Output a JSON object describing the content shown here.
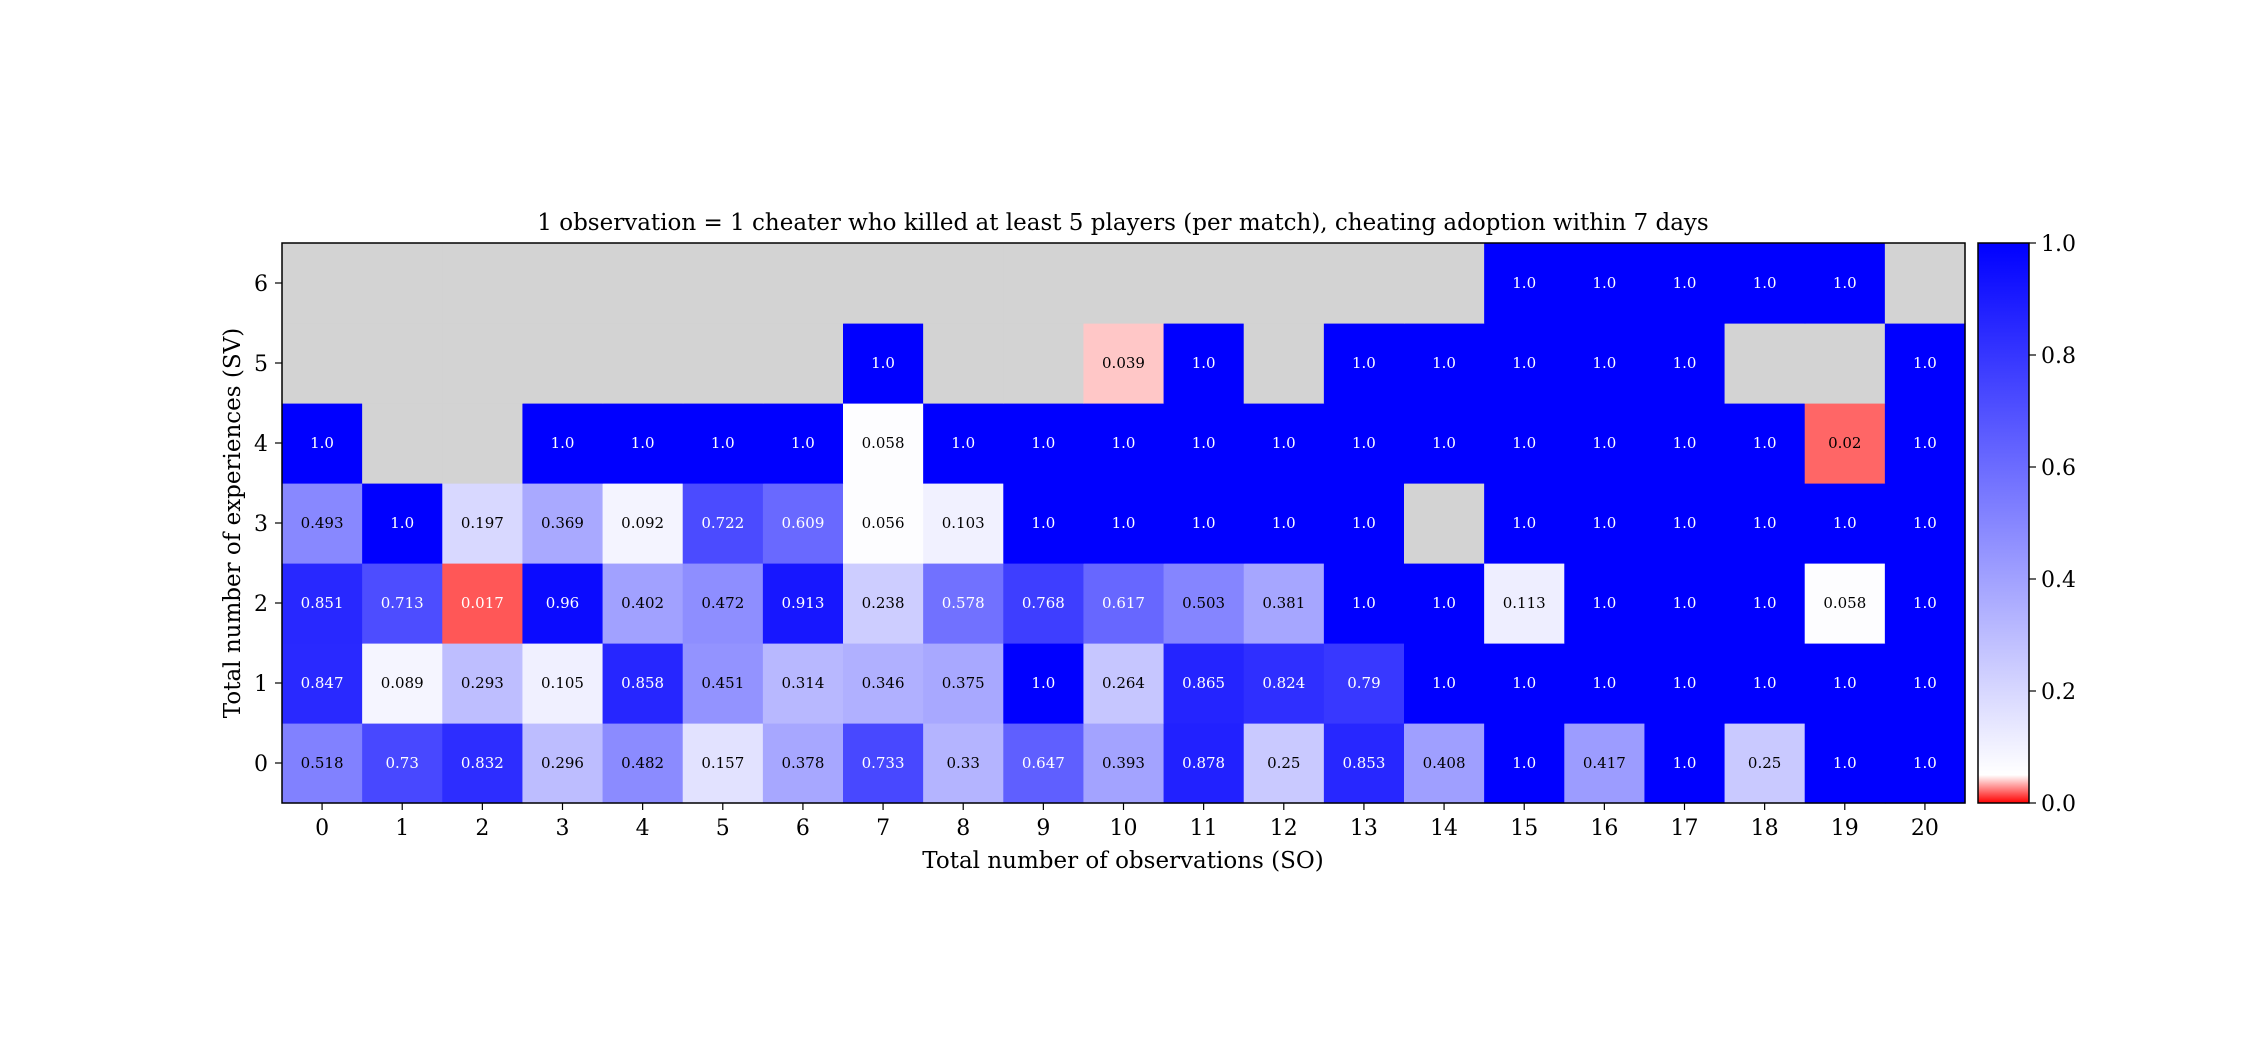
{
  "chart_data": {
    "type": "heatmap",
    "title": "1 observation = 1 cheater who killed at least 5 players (per match), cheating adoption within 7 days",
    "xlabel": "Total number of observations (SO)",
    "ylabel": "Total number of experiences (SV)",
    "x_categories": [
      "0",
      "1",
      "2",
      "3",
      "4",
      "5",
      "6",
      "7",
      "8",
      "9",
      "10",
      "11",
      "12",
      "13",
      "14",
      "15",
      "16",
      "17",
      "18",
      "19",
      "20"
    ],
    "y_categories": [
      "0",
      "1",
      "2",
      "3",
      "4",
      "5",
      "6"
    ],
    "values": [
      [
        0.518,
        0.73,
        0.832,
        0.296,
        0.482,
        0.157,
        0.378,
        0.733,
        0.33,
        0.647,
        0.393,
        0.878,
        0.25,
        0.853,
        0.408,
        1.0,
        0.417,
        1.0,
        0.25,
        1.0,
        1.0
      ],
      [
        0.847,
        0.089,
        0.293,
        0.105,
        0.858,
        0.451,
        0.314,
        0.346,
        0.375,
        1.0,
        0.264,
        0.865,
        0.824,
        0.79,
        1.0,
        1.0,
        1.0,
        1.0,
        1.0,
        1.0,
        1.0
      ],
      [
        0.851,
        0.713,
        0.017,
        0.96,
        0.402,
        0.472,
        0.913,
        0.238,
        0.578,
        0.768,
        0.617,
        0.503,
        0.381,
        1.0,
        1.0,
        0.113,
        1.0,
        1.0,
        1.0,
        0.058,
        1.0
      ],
      [
        0.493,
        1.0,
        0.197,
        0.369,
        0.092,
        0.722,
        0.609,
        0.056,
        0.103,
        1.0,
        1.0,
        1.0,
        1.0,
        1.0,
        null,
        1.0,
        1.0,
        1.0,
        1.0,
        1.0,
        1.0
      ],
      [
        1.0,
        null,
        null,
        1.0,
        1.0,
        1.0,
        1.0,
        0.058,
        1.0,
        1.0,
        1.0,
        1.0,
        1.0,
        1.0,
        1.0,
        1.0,
        1.0,
        1.0,
        1.0,
        0.02,
        1.0
      ],
      [
        null,
        null,
        null,
        null,
        null,
        null,
        null,
        1.0,
        null,
        null,
        0.039,
        1.0,
        null,
        1.0,
        1.0,
        1.0,
        1.0,
        1.0,
        null,
        null,
        1.0
      ],
      [
        null,
        null,
        null,
        null,
        null,
        null,
        null,
        null,
        null,
        null,
        null,
        null,
        null,
        null,
        null,
        1.0,
        1.0,
        1.0,
        1.0,
        1.0,
        null
      ]
    ],
    "labels": [
      [
        "0.518",
        "0.73",
        "0.832",
        "0.296",
        "0.482",
        "0.157",
        "0.378",
        "0.733",
        "0.33",
        "0.647",
        "0.393",
        "0.878",
        "0.25",
        "0.853",
        "0.408",
        "1.0",
        "0.417",
        "1.0",
        "0.25",
        "1.0",
        "1.0"
      ],
      [
        "0.847",
        "0.089",
        "0.293",
        "0.105",
        "0.858",
        "0.451",
        "0.314",
        "0.346",
        "0.375",
        "1.0",
        "0.264",
        "0.865",
        "0.824",
        "0.79",
        "1.0",
        "1.0",
        "1.0",
        "1.0",
        "1.0",
        "1.0",
        "1.0"
      ],
      [
        "0.851",
        "0.713",
        "0.017",
        "0.96",
        "0.402",
        "0.472",
        "0.913",
        "0.238",
        "0.578",
        "0.768",
        "0.617",
        "0.503",
        "0.381",
        "1.0",
        "1.0",
        "0.113",
        "1.0",
        "1.0",
        "1.0",
        "0.058",
        "1.0"
      ],
      [
        "0.493",
        "1.0",
        "0.197",
        "0.369",
        "0.092",
        "0.722",
        "0.609",
        "0.056",
        "0.103",
        "1.0",
        "1.0",
        "1.0",
        "1.0",
        "1.0",
        "",
        "1.0",
        "1.0",
        "1.0",
        "1.0",
        "1.0",
        "1.0"
      ],
      [
        "1.0",
        "",
        "",
        "1.0",
        "1.0",
        "1.0",
        "1.0",
        "0.058",
        "1.0",
        "1.0",
        "1.0",
        "1.0",
        "1.0",
        "1.0",
        "1.0",
        "1.0",
        "1.0",
        "1.0",
        "1.0",
        "0.02",
        "1.0"
      ],
      [
        "",
        "",
        "",
        "",
        "",
        "",
        "",
        "1.0",
        "",
        "",
        "0.039",
        "1.0",
        "",
        "1.0",
        "1.0",
        "1.0",
        "1.0",
        "1.0",
        "",
        "",
        "1.0"
      ],
      [
        "",
        "",
        "",
        "",
        "",
        "",
        "",
        "",
        "",
        "",
        "",
        "",
        "",
        "",
        "",
        "1.0",
        "1.0",
        "1.0",
        "1.0",
        "1.0",
        ""
      ]
    ],
    "missing_color": "#d3d3d3",
    "colorbar": {
      "range": [
        0.0,
        1.0
      ],
      "ticks": [
        "0.0",
        "0.2",
        "0.4",
        "0.6",
        "0.8",
        "1.0"
      ],
      "stops": [
        {
          "v": 0.0,
          "color": "#ff0000"
        },
        {
          "v": 0.05,
          "color": "#ffffff"
        },
        {
          "v": 1.0,
          "color": "#0000ff"
        }
      ]
    },
    "grid": false,
    "legend": "colorbar-right"
  }
}
